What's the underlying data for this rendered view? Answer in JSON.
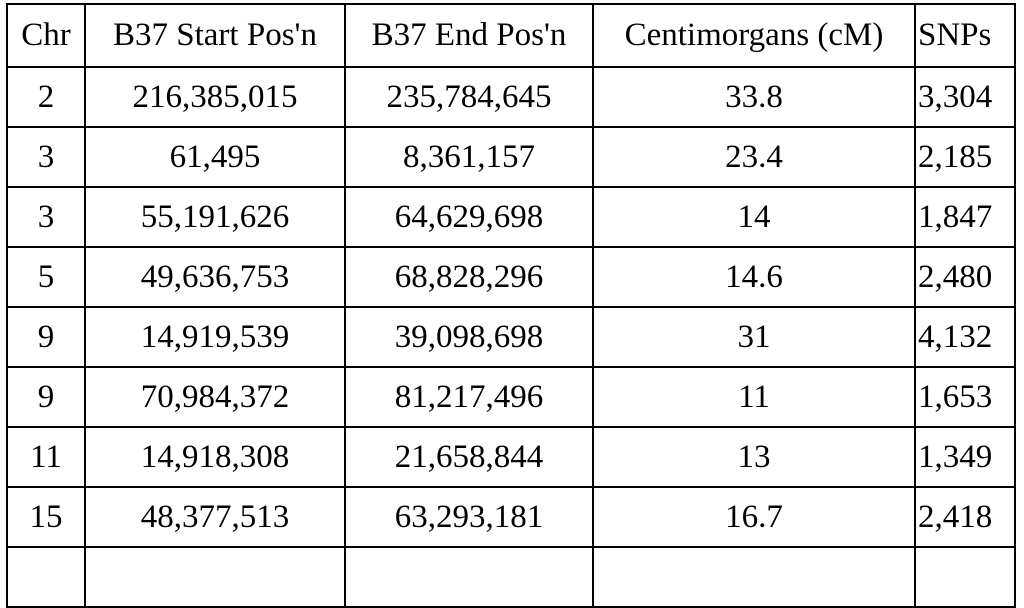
{
  "table": {
    "header": [
      "Chr",
      "B37 Start Pos'n",
      "B37 End Pos'n",
      "Centimorgans (cM)",
      "SNPs"
    ],
    "rows": [
      [
        "2",
        "216,385,015",
        "235,784,645",
        "33.8",
        "3,304"
      ],
      [
        "3",
        "61,495",
        "8,361,157",
        "23.4",
        "2,185"
      ],
      [
        "3",
        "55,191,626",
        "64,629,698",
        "14",
        "1,847"
      ],
      [
        "5",
        "49,636,753",
        "68,828,296",
        "14.6",
        "2,480"
      ],
      [
        "9",
        "14,919,539",
        "39,098,698",
        "31",
        "4,132"
      ],
      [
        "9",
        "70,984,372",
        "81,217,496",
        "11",
        "1,653"
      ],
      [
        "11",
        "14,918,308",
        "21,658,844",
        "13",
        "1,349"
      ],
      [
        "15",
        "48,377,513",
        "63,293,181",
        "16.7",
        "2,418"
      ]
    ]
  }
}
